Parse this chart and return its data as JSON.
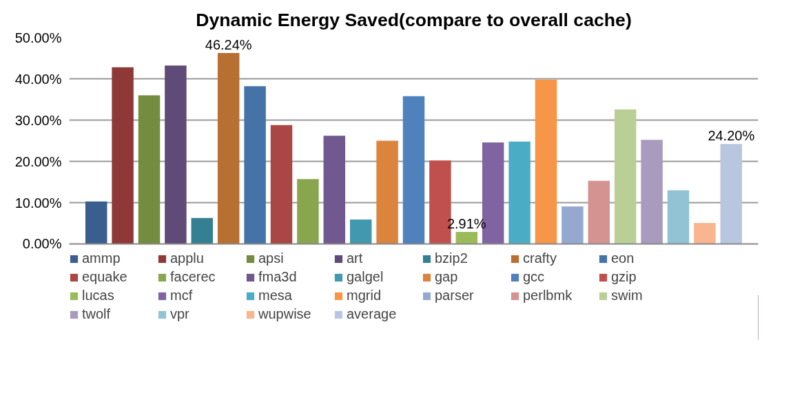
{
  "chart_data": {
    "type": "bar",
    "title": "Dynamic Energy Saved(compare to overall cache)",
    "categories": [
      null
    ],
    "series": [
      {
        "name": "ammp",
        "color": "#3a5f8f",
        "values": [
          10.3
        ]
      },
      {
        "name": "applu",
        "color": "#8e3937",
        "values": [
          42.8
        ]
      },
      {
        "name": "apsi",
        "color": "#738c3f",
        "values": [
          36.0
        ]
      },
      {
        "name": "art",
        "color": "#5f4a78",
        "values": [
          43.2
        ]
      },
      {
        "name": "bzip2",
        "color": "#357f93",
        "values": [
          6.3
        ]
      },
      {
        "name": "crafty",
        "color": "#b87032",
        "values": [
          46.24
        ],
        "value_labels": [
          "46.24%"
        ]
      },
      {
        "name": "eon",
        "color": "#4572a7",
        "values": [
          38.2
        ]
      },
      {
        "name": "equake",
        "color": "#aa4643",
        "values": [
          28.8
        ]
      },
      {
        "name": "facerec",
        "color": "#89a54e",
        "values": [
          15.7
        ]
      },
      {
        "name": "fma3d",
        "color": "#71588f",
        "values": [
          26.2
        ]
      },
      {
        "name": "galgel",
        "color": "#4198af",
        "values": [
          5.9
        ]
      },
      {
        "name": "gap",
        "color": "#db843d",
        "values": [
          25.0
        ]
      },
      {
        "name": "gcc",
        "color": "#4f81bd",
        "values": [
          35.8
        ]
      },
      {
        "name": "gzip",
        "color": "#c0504d",
        "values": [
          20.2
        ]
      },
      {
        "name": "lucas",
        "color": "#9bbb59",
        "values": [
          2.91
        ],
        "value_labels": [
          "2.91%"
        ]
      },
      {
        "name": "mcf",
        "color": "#8064a2",
        "values": [
          24.6
        ]
      },
      {
        "name": "mesa",
        "color": "#4bacc6",
        "values": [
          24.8
        ]
      },
      {
        "name": "mgrid",
        "color": "#f79646",
        "values": [
          39.8
        ]
      },
      {
        "name": "parser",
        "color": "#95a9d0",
        "values": [
          9.1
        ]
      },
      {
        "name": "perlbmk",
        "color": "#d49391",
        "values": [
          15.3
        ]
      },
      {
        "name": "swim",
        "color": "#b9cf96",
        "values": [
          32.6
        ]
      },
      {
        "name": "twolf",
        "color": "#a99bbd",
        "values": [
          25.2
        ]
      },
      {
        "name": "vpr",
        "color": "#92c3d4",
        "values": [
          13.0
        ]
      },
      {
        "name": "wupwise",
        "color": "#f9b590",
        "values": [
          5.1
        ]
      },
      {
        "name": "average",
        "color": "#b9c6e0",
        "values": [
          24.2
        ],
        "value_labels": [
          "24.20%"
        ]
      }
    ],
    "ylim": [
      0,
      50
    ],
    "yticks": [
      {
        "value": 0,
        "label": "0.00%"
      },
      {
        "value": 10,
        "label": "10.00%"
      },
      {
        "value": 20,
        "label": "20.00%"
      },
      {
        "value": 30,
        "label": "30.00%"
      },
      {
        "value": 40,
        "label": "40.00%"
      },
      {
        "value": 50,
        "label": "50.00%"
      }
    ],
    "grid": "y",
    "legend": "bottom"
  }
}
